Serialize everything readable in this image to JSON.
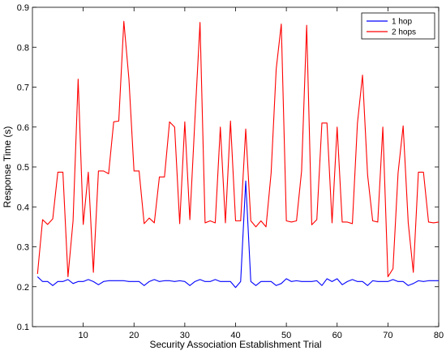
{
  "chart_data": {
    "type": "line",
    "xlabel": "Security Association Establishment Trial",
    "ylabel": "Response Time (s)",
    "xlim": [
      0,
      80
    ],
    "ylim": [
      0.1,
      0.9
    ],
    "xticks": [
      "10",
      "20",
      "30",
      "40",
      "50",
      "60",
      "70",
      "80"
    ],
    "yticks": [
      "0.1",
      "0.2",
      "0.3",
      "0.4",
      "0.5",
      "0.6",
      "0.7",
      "0.8",
      "0.9"
    ],
    "grid": false,
    "legend_position": "top-right",
    "x": [
      1,
      2,
      3,
      4,
      5,
      6,
      7,
      8,
      9,
      10,
      11,
      12,
      13,
      14,
      15,
      16,
      17,
      18,
      19,
      20,
      21,
      22,
      23,
      24,
      25,
      26,
      27,
      28,
      29,
      30,
      31,
      32,
      33,
      34,
      35,
      36,
      37,
      38,
      39,
      40,
      41,
      42,
      43,
      44,
      45,
      46,
      47,
      48,
      49,
      50,
      51,
      52,
      53,
      54,
      55,
      56,
      57,
      58,
      59,
      60,
      61,
      62,
      63,
      64,
      65,
      66,
      67,
      68,
      69,
      70,
      71,
      72,
      73,
      74,
      75,
      76,
      77,
      78,
      79,
      80
    ],
    "series": [
      {
        "name": "1 hop",
        "color": "#0000ff",
        "values": [
          0.225,
          0.213,
          0.213,
          0.203,
          0.213,
          0.213,
          0.218,
          0.208,
          0.213,
          0.213,
          0.218,
          0.213,
          0.205,
          0.213,
          0.215,
          0.215,
          0.215,
          0.215,
          0.213,
          0.213,
          0.213,
          0.203,
          0.213,
          0.218,
          0.213,
          0.215,
          0.215,
          0.213,
          0.215,
          0.213,
          0.203,
          0.213,
          0.218,
          0.213,
          0.213,
          0.218,
          0.213,
          0.213,
          0.213,
          0.198,
          0.213,
          0.465,
          0.213,
          0.203,
          0.213,
          0.213,
          0.213,
          0.203,
          0.208,
          0.22,
          0.213,
          0.215,
          0.213,
          0.213,
          0.213,
          0.215,
          0.203,
          0.22,
          0.213,
          0.22,
          0.205,
          0.213,
          0.218,
          0.213,
          0.213,
          0.203,
          0.215,
          0.213,
          0.213,
          0.213,
          0.218,
          0.213,
          0.213,
          0.203,
          0.208,
          0.215,
          0.213,
          0.215,
          0.215,
          0.215
        ]
      },
      {
        "name": "2 hops",
        "color": "#ff0000",
        "values": [
          0.232,
          0.368,
          0.356,
          0.37,
          0.487,
          0.487,
          0.225,
          0.365,
          0.72,
          0.356,
          0.487,
          0.236,
          0.49,
          0.49,
          0.483,
          0.613,
          0.615,
          0.865,
          0.72,
          0.49,
          0.49,
          0.358,
          0.372,
          0.36,
          0.475,
          0.475,
          0.613,
          0.6,
          0.358,
          0.613,
          0.368,
          0.62,
          0.862,
          0.36,
          0.365,
          0.36,
          0.6,
          0.36,
          0.615,
          0.365,
          0.365,
          0.595,
          0.365,
          0.35,
          0.365,
          0.35,
          0.485,
          0.745,
          0.858,
          0.365,
          0.362,
          0.365,
          0.49,
          0.855,
          0.355,
          0.368,
          0.61,
          0.61,
          0.36,
          0.6,
          0.362,
          0.362,
          0.358,
          0.61,
          0.73,
          0.48,
          0.365,
          0.362,
          0.6,
          0.225,
          0.245,
          0.485,
          0.603,
          0.36,
          0.236,
          0.487,
          0.487,
          0.362,
          0.36,
          0.362
        ]
      }
    ]
  }
}
